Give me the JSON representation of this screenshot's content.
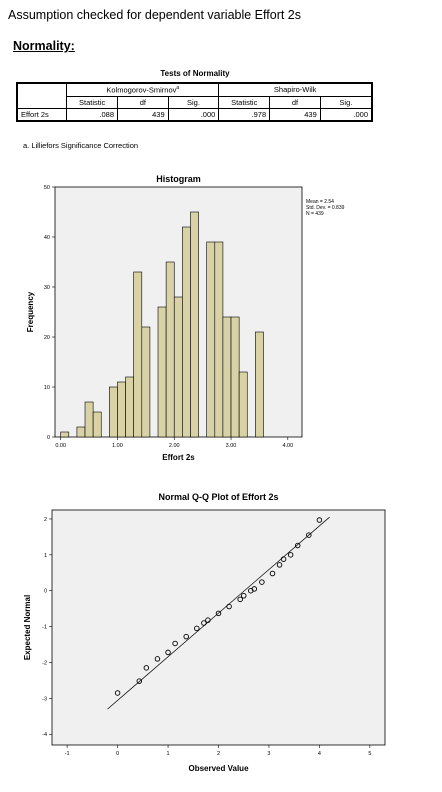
{
  "header": {
    "intro": "Assumption checked for dependent variable Effort 2s",
    "section": "Normality:"
  },
  "normality_table": {
    "title": "Tests of Normality",
    "group1": "Kolmogorov-Smirnov",
    "group1_sup": "a",
    "group2": "Shapiro-Wilk",
    "columns": [
      "Statistic",
      "df",
      "Sig.",
      "Statistic",
      "df",
      "Sig."
    ],
    "row_label": "Effort 2s",
    "values": [
      ".088",
      "439",
      ".000",
      ".978",
      "439",
      ".000"
    ],
    "footnote": "a. Lilliefors Significance Correction"
  },
  "chart_data": [
    {
      "type": "bar",
      "title": "Histogram",
      "xlabel": "Effort 2s",
      "ylabel": "Frequency",
      "legend": [
        "Mean = 2.54",
        "Std. Dev. = 0.839",
        "N = 439"
      ],
      "legend_position": "top-right",
      "bin_width": 0.1429,
      "bin_start": [
        0.0,
        0.1429,
        0.2857,
        0.4286,
        0.5714,
        0.7143,
        0.8571,
        1.0,
        1.1429,
        1.2857,
        1.4286,
        1.5714,
        1.7143,
        1.8571,
        2.0,
        2.1429,
        2.2857,
        2.4286,
        2.5714,
        2.7143,
        2.8571,
        3.0,
        3.1429,
        3.2857,
        3.4286,
        3.5714,
        3.7143,
        3.8571,
        4.0
      ],
      "values": [
        1,
        0,
        2,
        7,
        5,
        0,
        10,
        11,
        12,
        33,
        22,
        0,
        26,
        35,
        28,
        42,
        45,
        0,
        39,
        39,
        24,
        24,
        13,
        0,
        21,
        0,
        0,
        0,
        0
      ],
      "xlim": [
        -0.1,
        4.25
      ],
      "ylim": [
        0,
        50
      ],
      "x_ticks": [
        "0.00",
        "1.00",
        "2.00",
        "3.00",
        "4.00"
      ],
      "x_tick_values": [
        0,
        1,
        2,
        3,
        4
      ],
      "y_ticks": [
        "0",
        "10",
        "20",
        "30",
        "40",
        "50"
      ],
      "y_tick_values": [
        0,
        10,
        20,
        30,
        40,
        50
      ],
      "colors": {
        "bar": "#d9d2a6",
        "plot_bg": "#f0f0f0"
      }
    },
    {
      "type": "scatter",
      "title": "Normal Q-Q Plot of Effort 2s",
      "xlabel": "Observed Value",
      "ylabel": "Expected Normal",
      "xlim": [
        -1.3,
        5.3
      ],
      "ylim": [
        -4.3,
        2.25
      ],
      "x_ticks": [
        "-1",
        "0",
        "1",
        "2",
        "3",
        "4",
        "5"
      ],
      "x_tick_values": [
        -1,
        0,
        1,
        2,
        3,
        4,
        5
      ],
      "y_ticks": [
        "2",
        "1",
        "0",
        "-1",
        "-2",
        "-3",
        "-4"
      ],
      "y_tick_values": [
        2,
        1,
        0,
        -1,
        -2,
        -3,
        -4
      ],
      "points": [
        {
          "x": 0.0,
          "y": -2.85
        },
        {
          "x": 0.43,
          "y": -2.52
        },
        {
          "x": 0.57,
          "y": -2.15
        },
        {
          "x": 0.79,
          "y": -1.9
        },
        {
          "x": 1.0,
          "y": -1.72
        },
        {
          "x": 1.14,
          "y": -1.47
        },
        {
          "x": 1.36,
          "y": -1.28
        },
        {
          "x": 1.57,
          "y": -1.05
        },
        {
          "x": 1.71,
          "y": -0.9
        },
        {
          "x": 1.79,
          "y": -0.82
        },
        {
          "x": 2.0,
          "y": -0.63
        },
        {
          "x": 2.21,
          "y": -0.44
        },
        {
          "x": 2.43,
          "y": -0.24
        },
        {
          "x": 2.5,
          "y": -0.14
        },
        {
          "x": 2.64,
          "y": 0.0
        },
        {
          "x": 2.71,
          "y": 0.05
        },
        {
          "x": 2.86,
          "y": 0.24
        },
        {
          "x": 3.07,
          "y": 0.48
        },
        {
          "x": 3.21,
          "y": 0.72
        },
        {
          "x": 3.29,
          "y": 0.88
        },
        {
          "x": 3.43,
          "y": 1.0
        },
        {
          "x": 3.57,
          "y": 1.26
        },
        {
          "x": 3.79,
          "y": 1.55
        },
        {
          "x": 4.0,
          "y": 1.97
        }
      ],
      "reference_line": {
        "x": [
          -0.2,
          4.2
        ],
        "y": [
          -3.3,
          2.05
        ]
      },
      "colors": {
        "plot_bg": "#f0f0f0"
      }
    }
  ]
}
